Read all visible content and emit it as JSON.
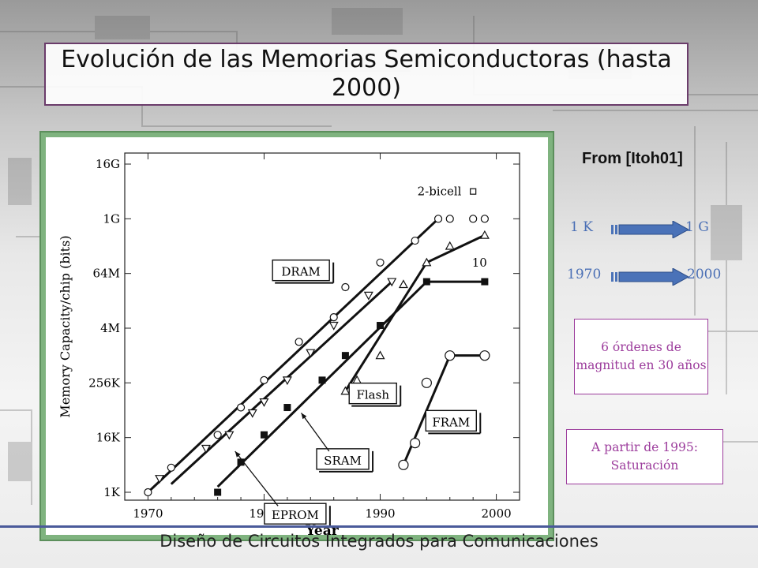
{
  "slide": {
    "title": "Evolución de las Memorias Semiconductoras (hasta 2000)",
    "source": "From [Itoh01]",
    "arrow1": {
      "from": "1 K",
      "to": "1 G"
    },
    "arrow2": {
      "from": "1970",
      "to": "2000"
    },
    "note1": "6 órdenes de magnitud en 30 años",
    "note2": "A partir de 1995: Saturación",
    "footer": "Diseño de Circuitos Integrados para Comunicaciones",
    "colors": {
      "title_border": "#6b3c6b",
      "arrow": "#4a72b8",
      "note_text": "#9c3c9c",
      "chart_frame": "#7fb37f"
    }
  },
  "chart_data": {
    "type": "scatter",
    "xlabel": "Year",
    "ylabel": "Memory Capacity/chip (bits)",
    "xlim": [
      1968,
      2002
    ],
    "x_ticks": [
      1970,
      1980,
      1990,
      2000
    ],
    "y_ticks": [
      {
        "label": "1K",
        "log4": 0
      },
      {
        "label": "16K",
        "log4": 2
      },
      {
        "label": "256K",
        "log4": 4
      },
      {
        "label": "4M",
        "log4": 6
      },
      {
        "label": "64M",
        "log4": 8
      },
      {
        "label": "1G",
        "log4": 10
      },
      {
        "label": "16G",
        "log4": 12
      }
    ],
    "y_scale": "log4 (1 unit = x4 capacity, 0 = 1K bits)",
    "grid": false,
    "series": [
      {
        "name": "DRAM",
        "marker": "open-circle",
        "points": [
          [
            1970,
            0
          ],
          [
            1972,
            0.9
          ],
          [
            1976,
            2.1
          ],
          [
            1978,
            3.1
          ],
          [
            1980,
            4.1
          ],
          [
            1983,
            5.5
          ],
          [
            1986,
            6.4
          ],
          [
            1987,
            7.5
          ],
          [
            1990,
            8.4
          ],
          [
            1993,
            9.2
          ],
          [
            1995,
            10
          ],
          [
            1996,
            10
          ],
          [
            1998,
            10
          ],
          [
            1999,
            10
          ]
        ],
        "fit": [
          [
            1970,
            0
          ],
          [
            1995,
            10
          ]
        ]
      },
      {
        "name": "EPROM",
        "marker": "open-triangle-down",
        "points": [
          [
            1971,
            0.5
          ],
          [
            1975,
            1.6
          ],
          [
            1977,
            2.1
          ],
          [
            1979,
            2.9
          ],
          [
            1980,
            3.3
          ],
          [
            1982,
            4.1
          ],
          [
            1984,
            5.1
          ],
          [
            1986,
            6.1
          ],
          [
            1989,
            7.2
          ],
          [
            1991,
            7.7
          ]
        ],
        "fit": [
          [
            1972,
            0.3
          ],
          [
            1991,
            7.7
          ]
        ]
      },
      {
        "name": "SRAM",
        "marker": "filled-square",
        "points": [
          [
            1976,
            0
          ],
          [
            1978,
            1.1
          ],
          [
            1980,
            2.1
          ],
          [
            1982,
            3.1
          ],
          [
            1985,
            4.1
          ],
          [
            1987,
            5.0
          ],
          [
            1990,
            6.1
          ],
          [
            1994,
            7.7
          ],
          [
            1999,
            7.7
          ]
        ],
        "fit": [
          [
            1976,
            0.2
          ],
          [
            1994,
            7.7
          ],
          [
            1999,
            7.7
          ]
        ]
      },
      {
        "name": "Flash",
        "marker": "open-triangle-up",
        "points": [
          [
            1987,
            3.7
          ],
          [
            1988,
            4.1
          ],
          [
            1990,
            5.0
          ],
          [
            1992,
            7.6
          ],
          [
            1994,
            8.4
          ],
          [
            1996,
            9.0
          ],
          [
            1999,
            9.4
          ]
        ],
        "fit": [
          [
            1987,
            3.7
          ],
          [
            1994,
            8.4
          ],
          [
            1999,
            9.4
          ]
        ]
      },
      {
        "name": "FRAM",
        "marker": "open-circle-large",
        "points": [
          [
            1992,
            1.0
          ],
          [
            1993,
            1.8
          ],
          [
            1994,
            4.0
          ],
          [
            1996,
            5.0
          ],
          [
            1999,
            5.0
          ]
        ],
        "fit": [
          [
            1992,
            1.0
          ],
          [
            1996,
            5.0
          ],
          [
            1999,
            5.0
          ]
        ]
      },
      {
        "name": "2-bicell",
        "marker": "open-square-small",
        "points": [
          [
            1998,
            11.0
          ]
        ]
      }
    ],
    "annotations": [
      {
        "text": "DRAM",
        "boxed": true
      },
      {
        "text": "SRAM",
        "boxed": true
      },
      {
        "text": "EPROM",
        "boxed": true
      },
      {
        "text": "Flash",
        "boxed": true
      },
      {
        "text": "FRAM",
        "boxed": true
      },
      {
        "text": "2-bicell",
        "boxed": false
      },
      {
        "text": "10",
        "boxed": false
      }
    ]
  }
}
